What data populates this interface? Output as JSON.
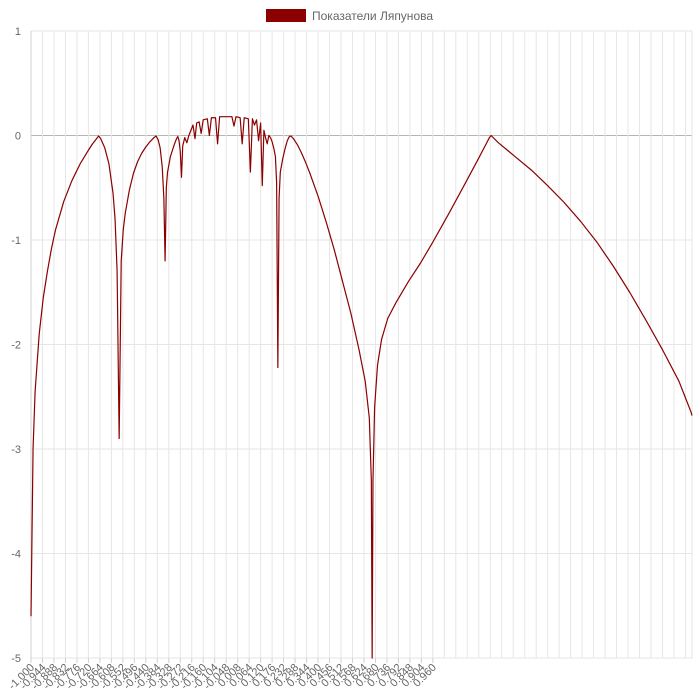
{
  "chart_data": {
    "type": "line",
    "legend": {
      "position": "top-center"
    },
    "grid": true,
    "series": [
      {
        "name": "Показатели Ляпунова",
        "color": "#8b0000",
        "points": [
          [
            -1.0,
            -4.6
          ],
          [
            -0.995,
            -3.0
          ],
          [
            -0.99,
            -2.45
          ],
          [
            -0.98,
            -1.9
          ],
          [
            -0.97,
            -1.55
          ],
          [
            -0.96,
            -1.3
          ],
          [
            -0.95,
            -1.08
          ],
          [
            -0.94,
            -0.9
          ],
          [
            -0.92,
            -0.63
          ],
          [
            -0.9,
            -0.43
          ],
          [
            -0.88,
            -0.27
          ],
          [
            -0.86,
            -0.14
          ],
          [
            -0.85,
            -0.08
          ],
          [
            -0.84,
            -0.03
          ],
          [
            -0.835,
            -0.005
          ],
          [
            -0.83,
            -0.03
          ],
          [
            -0.82,
            -0.12
          ],
          [
            -0.81,
            -0.27
          ],
          [
            -0.8,
            -0.55
          ],
          [
            -0.795,
            -0.8
          ],
          [
            -0.79,
            -1.3
          ],
          [
            -0.785,
            -2.9
          ],
          [
            -0.78,
            -1.2
          ],
          [
            -0.775,
            -0.9
          ],
          [
            -0.77,
            -0.74
          ],
          [
            -0.76,
            -0.52
          ],
          [
            -0.75,
            -0.36
          ],
          [
            -0.74,
            -0.25
          ],
          [
            -0.73,
            -0.17
          ],
          [
            -0.72,
            -0.11
          ],
          [
            -0.71,
            -0.06
          ],
          [
            -0.7,
            -0.02
          ],
          [
            -0.695,
            -0.005
          ],
          [
            -0.69,
            -0.04
          ],
          [
            -0.685,
            -0.12
          ],
          [
            -0.68,
            -0.3
          ],
          [
            -0.676,
            -0.6
          ],
          [
            -0.673,
            -1.2
          ],
          [
            -0.67,
            -0.5
          ],
          [
            -0.667,
            -0.35
          ],
          [
            -0.66,
            -0.2
          ],
          [
            -0.65,
            -0.08
          ],
          [
            -0.645,
            -0.03
          ],
          [
            -0.642,
            -0.01
          ],
          [
            -0.639,
            -0.05
          ],
          [
            -0.636,
            -0.15
          ],
          [
            -0.633,
            -0.4
          ],
          [
            -0.63,
            -0.1
          ],
          [
            -0.625,
            -0.02
          ],
          [
            -0.62,
            -0.07
          ],
          [
            -0.615,
            0.0
          ],
          [
            -0.61,
            0.05
          ],
          [
            -0.605,
            0.1
          ],
          [
            -0.6,
            -0.03
          ],
          [
            -0.596,
            0.12
          ],
          [
            -0.59,
            0.13
          ],
          [
            -0.585,
            0.02
          ],
          [
            -0.58,
            0.15
          ],
          [
            -0.57,
            0.16
          ],
          [
            -0.565,
            0.0
          ],
          [
            -0.56,
            0.17
          ],
          [
            -0.55,
            0.17
          ],
          [
            -0.545,
            -0.08
          ],
          [
            -0.54,
            0.18
          ],
          [
            -0.53,
            0.18
          ],
          [
            -0.52,
            0.18
          ],
          [
            -0.51,
            0.18
          ],
          [
            -0.505,
            0.09
          ],
          [
            -0.5,
            0.18
          ],
          [
            -0.49,
            0.17
          ],
          [
            -0.485,
            -0.08
          ],
          [
            -0.48,
            0.17
          ],
          [
            -0.47,
            0.16
          ],
          [
            -0.465,
            -0.35
          ],
          [
            -0.46,
            0.16
          ],
          [
            -0.455,
            0.1
          ],
          [
            -0.45,
            0.15
          ],
          [
            -0.445,
            -0.05
          ],
          [
            -0.44,
            0.12
          ],
          [
            -0.436,
            -0.48
          ],
          [
            -0.432,
            0.05
          ],
          [
            -0.428,
            -0.02
          ],
          [
            -0.424,
            -0.08
          ],
          [
            -0.42,
            0.0
          ],
          [
            -0.416,
            -0.02
          ],
          [
            -0.412,
            -0.06
          ],
          [
            -0.408,
            -0.12
          ],
          [
            -0.404,
            -0.2
          ],
          [
            -0.401,
            -0.45
          ],
          [
            -0.398,
            -2.22
          ],
          [
            -0.395,
            -0.6
          ],
          [
            -0.392,
            -0.35
          ],
          [
            -0.386,
            -0.22
          ],
          [
            -0.38,
            -0.12
          ],
          [
            -0.375,
            -0.05
          ],
          [
            -0.37,
            -0.01
          ],
          [
            -0.366,
            -0.005
          ],
          [
            -0.36,
            -0.03
          ],
          [
            -0.35,
            -0.09
          ],
          [
            -0.34,
            -0.17
          ],
          [
            -0.33,
            -0.26
          ],
          [
            -0.32,
            -0.36
          ],
          [
            -0.3,
            -0.58
          ],
          [
            -0.28,
            -0.83
          ],
          [
            -0.26,
            -1.1
          ],
          [
            -0.24,
            -1.4
          ],
          [
            -0.22,
            -1.7
          ],
          [
            -0.2,
            -2.05
          ],
          [
            -0.185,
            -2.35
          ],
          [
            -0.175,
            -2.7
          ],
          [
            -0.17,
            -3.3
          ],
          [
            -0.168,
            -5.0
          ],
          [
            -0.166,
            -3.3
          ],
          [
            -0.162,
            -2.6
          ],
          [
            -0.155,
            -2.2
          ],
          [
            -0.145,
            -1.95
          ],
          [
            -0.13,
            -1.75
          ],
          [
            -0.11,
            -1.6
          ],
          [
            -0.08,
            -1.4
          ],
          [
            -0.05,
            -1.22
          ],
          [
            -0.02,
            -1.02
          ],
          [
            0.02,
            -0.74
          ],
          [
            0.06,
            -0.45
          ],
          [
            0.09,
            -0.23
          ],
          [
            0.11,
            -0.08
          ],
          [
            0.118,
            -0.02
          ],
          [
            0.122,
            0.0
          ],
          [
            0.14,
            -0.07
          ],
          [
            0.18,
            -0.2
          ],
          [
            0.22,
            -0.33
          ],
          [
            0.26,
            -0.48
          ],
          [
            0.3,
            -0.64
          ],
          [
            0.34,
            -0.82
          ],
          [
            0.38,
            -1.02
          ],
          [
            0.42,
            -1.25
          ],
          [
            0.46,
            -1.5
          ],
          [
            0.5,
            -1.77
          ],
          [
            0.54,
            -2.05
          ],
          [
            0.58,
            -2.35
          ],
          [
            0.6,
            -2.55
          ],
          [
            0.61,
            -2.65
          ],
          [
            0.612,
            -2.68
          ]
        ]
      }
    ],
    "x_axis": {
      "min": -1.0,
      "max": 0.612,
      "tick_labels": [
        "-1.000",
        "-0.944",
        "-0.888",
        "-0.832",
        "-0.776",
        "-0.720",
        "-0.664",
        "-0.608",
        "-0.552",
        "-0.496",
        "-0.440",
        "-0.384",
        "-0.328",
        "-0.272",
        "-0.216",
        "-0.160",
        "-0.104",
        "-0.048",
        "0.008",
        "0.064",
        "0.120",
        "0.176",
        "0.232",
        "0.288",
        "0.344",
        "0.400",
        "0.456",
        "0.512",
        "0.568",
        "0.624",
        "0.680",
        "0.736",
        "0.792",
        "0.848",
        "0.904",
        "0.960"
      ]
    },
    "y_axis": {
      "min": -5,
      "max": 1,
      "tick_labels": [
        "1",
        "0",
        "-1",
        "-2",
        "-3",
        "-4",
        "-5"
      ]
    }
  }
}
